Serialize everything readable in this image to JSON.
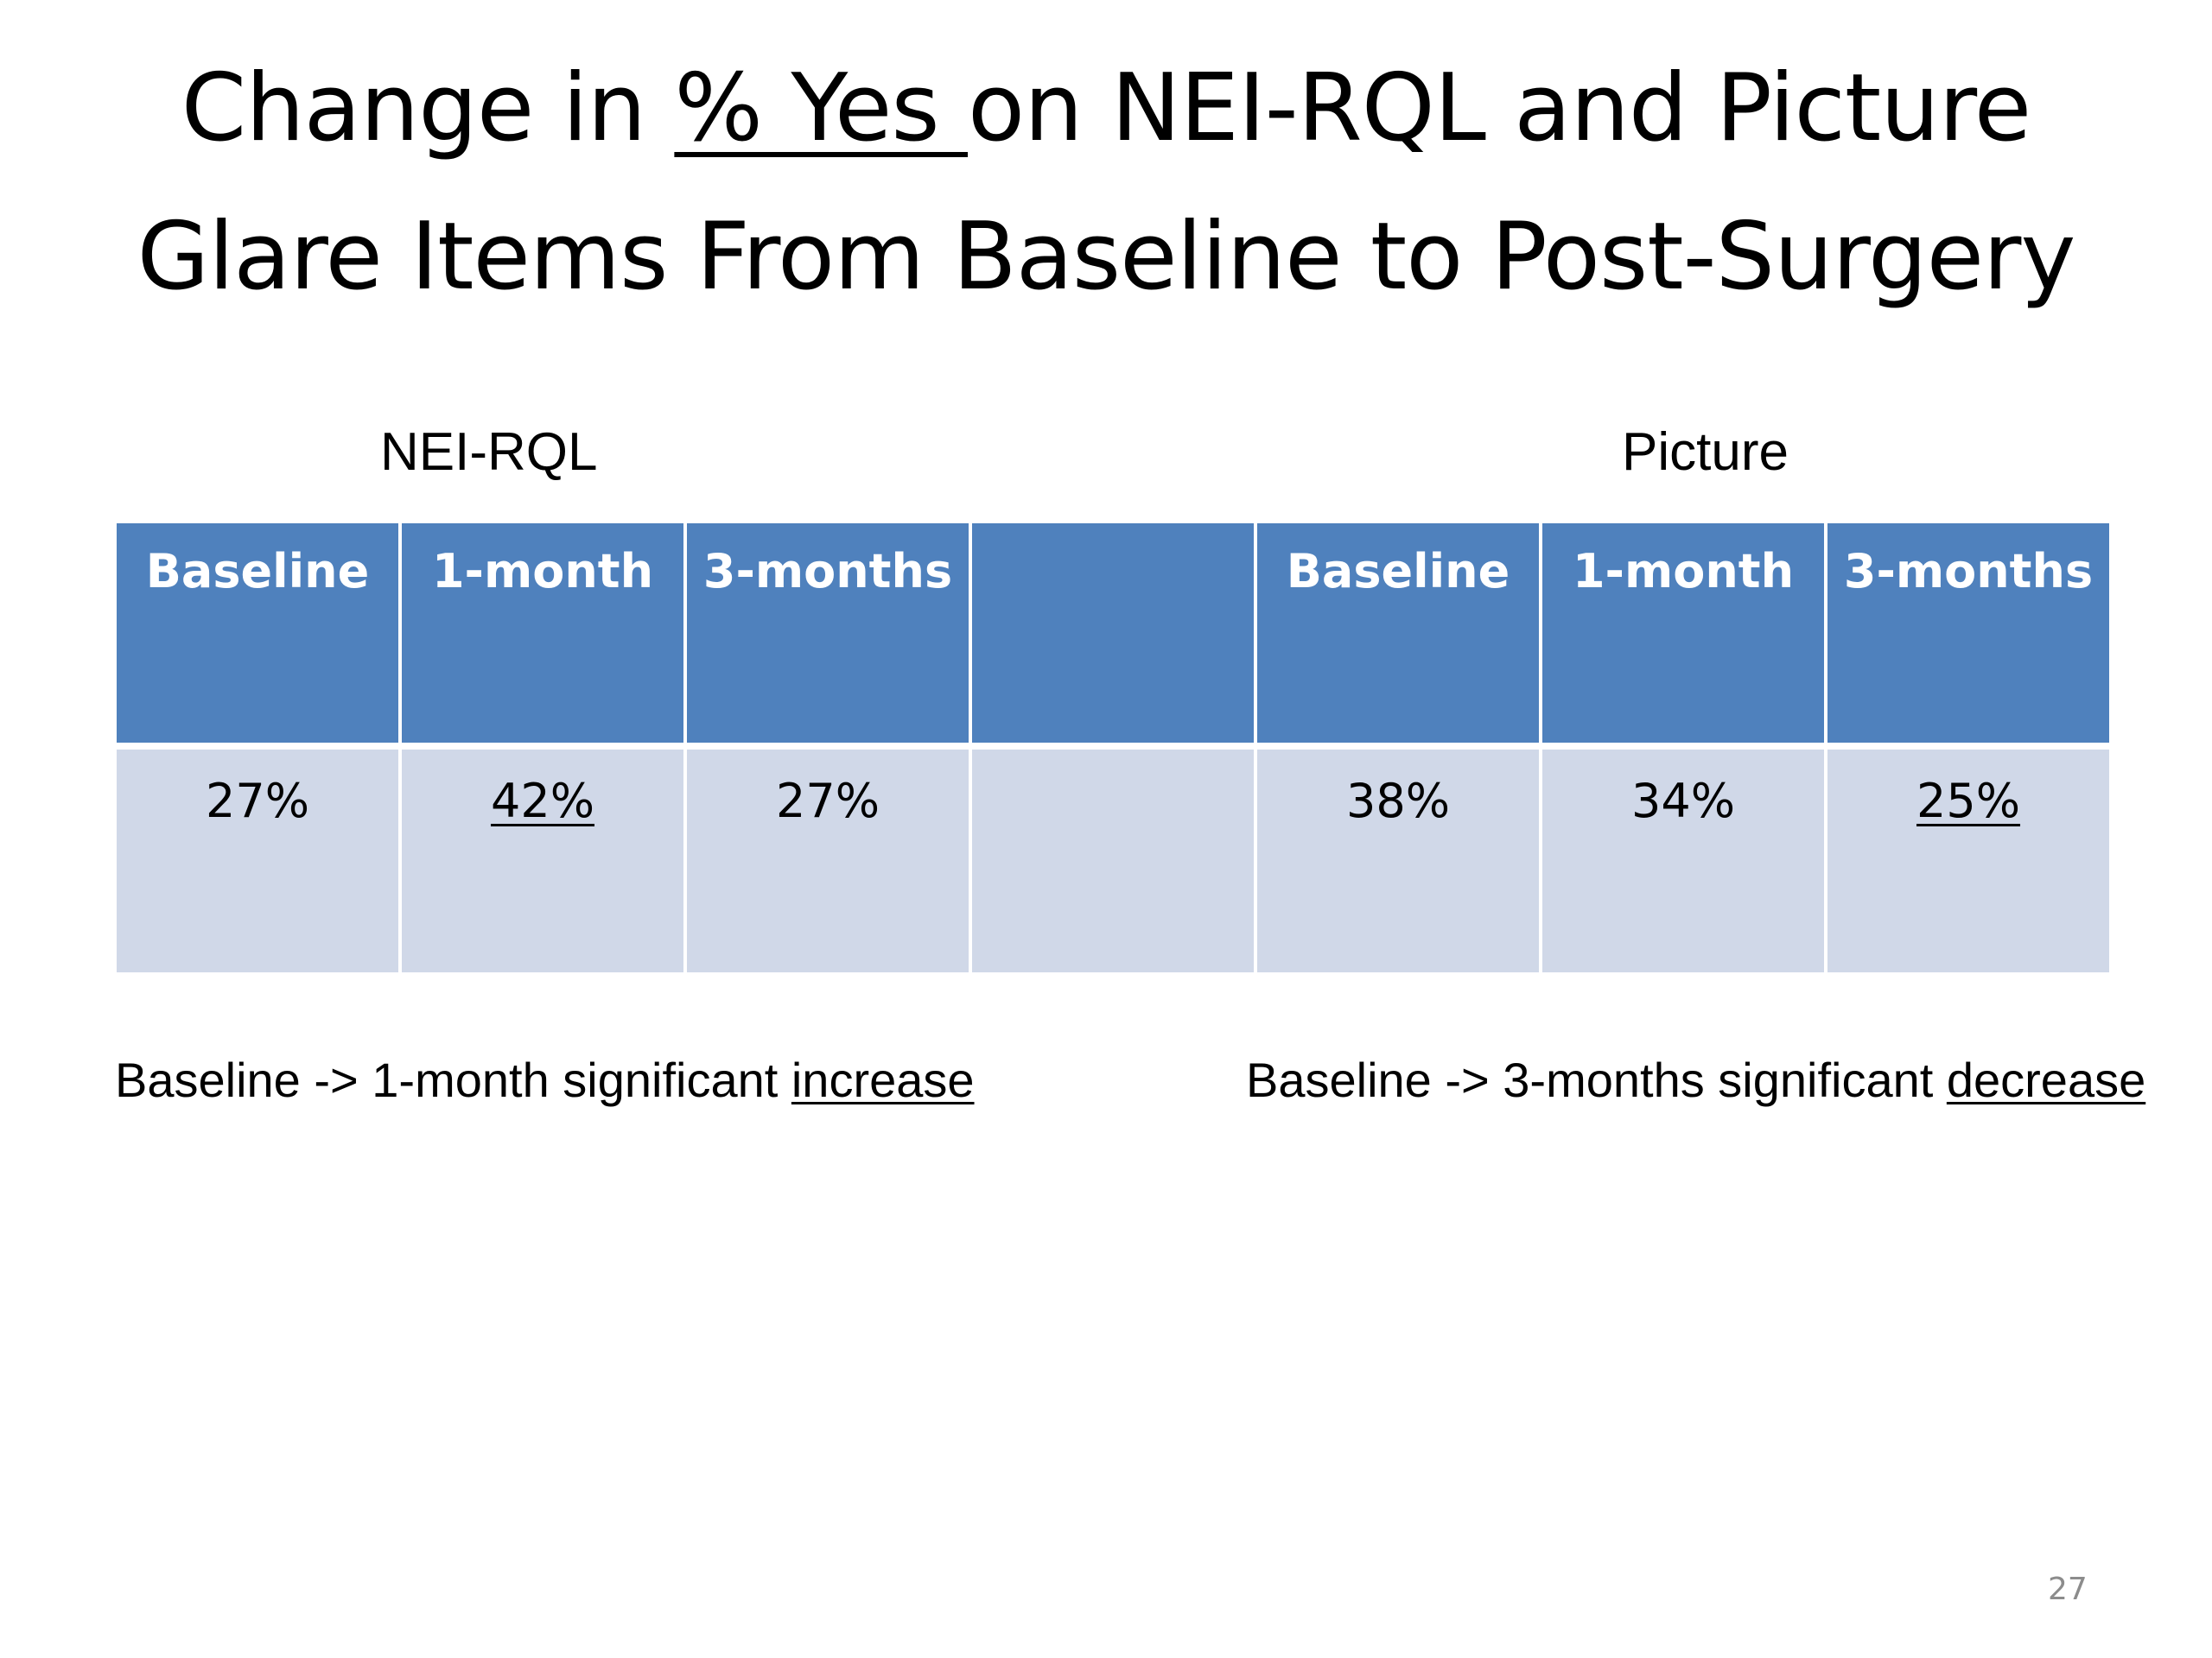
{
  "title": {
    "part1": "Change in ",
    "underlined": "% Yes ",
    "part2": "on NEI-RQL and Picture",
    "line2": "Glare Items From Baseline to Post-Surgery"
  },
  "groups": {
    "nei": "NEI-RQL",
    "picture": "Picture"
  },
  "table": {
    "headers": [
      "Baseline",
      "1-month",
      "3-months",
      "",
      "Baseline",
      "1-month",
      "3-months"
    ],
    "values": [
      "27%",
      "42%",
      "27%",
      "",
      "38%",
      "34%",
      "25%"
    ]
  },
  "notes": {
    "left_prefix": "Baseline -> 1-month significant ",
    "left_emph": "increase",
    "right_prefix": "Baseline -> 3-months significant ",
    "right_emph": "decrease"
  },
  "slide_number": "27",
  "colors": {
    "header_bg": "#4f81bd",
    "row_bg": "#d0d8e8"
  }
}
